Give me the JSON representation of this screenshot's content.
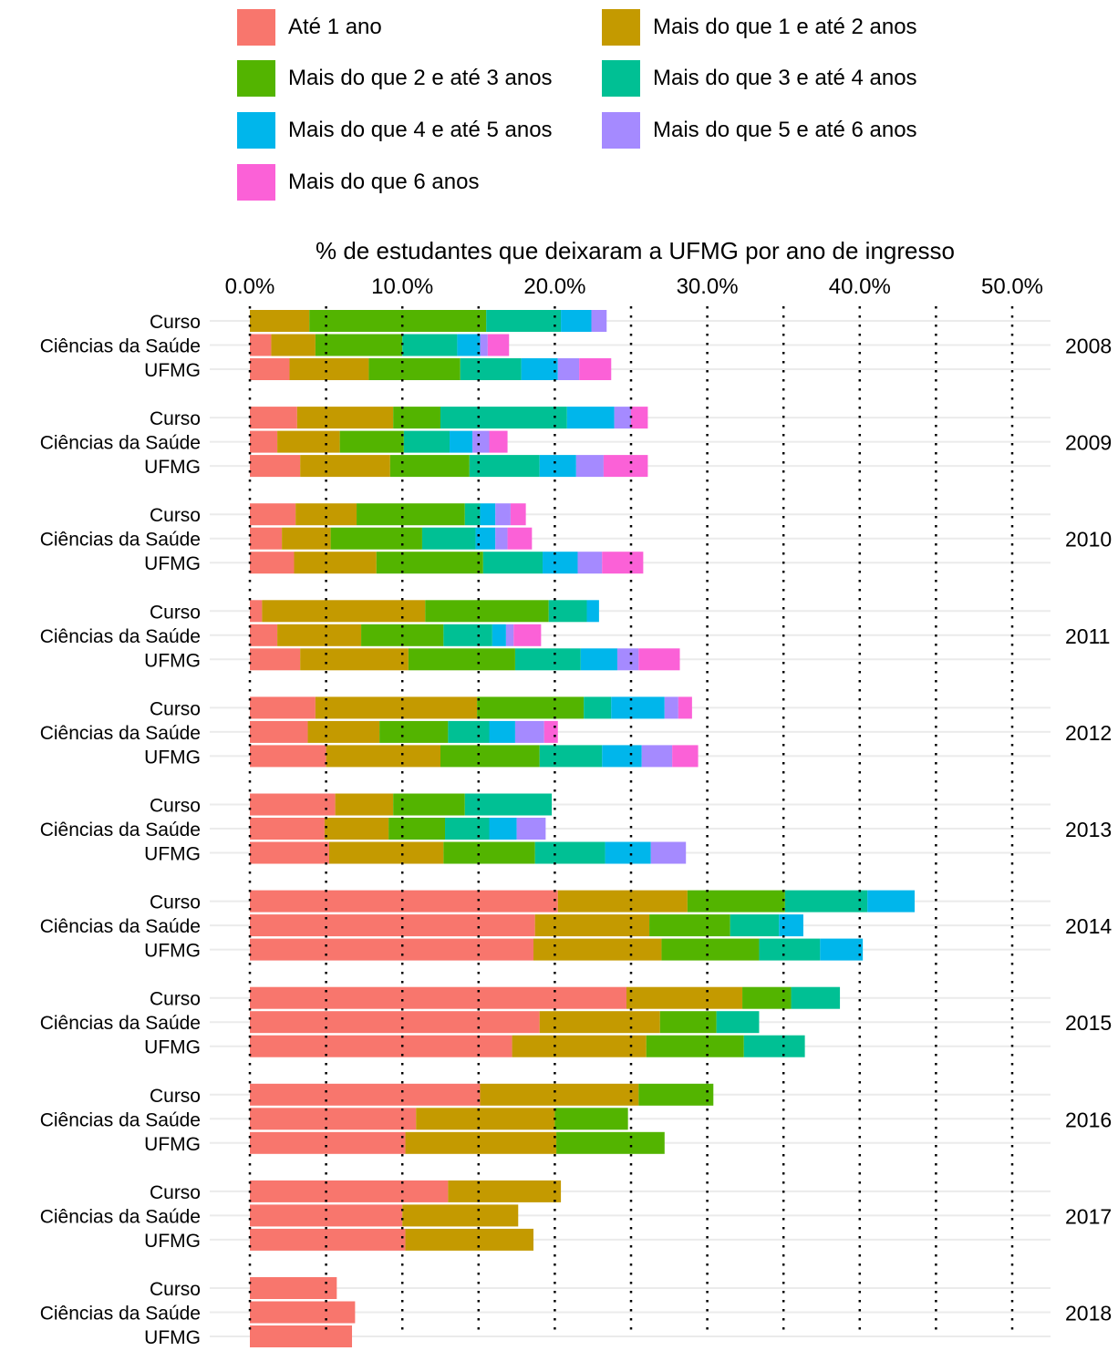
{
  "chart_data": {
    "type": "bar",
    "orientation": "horizontal",
    "stacked": true,
    "title": "% de estudantes que deixaram a UFMG por ano de ingresso",
    "x_axis_position": "top",
    "xlim": [
      0,
      52
    ],
    "xticks": [
      0,
      10,
      20,
      30,
      40,
      50
    ],
    "xtick_labels": [
      "0.0%",
      "10.0%",
      "20.0%",
      "30.0%",
      "40.0%",
      "50.0%"
    ],
    "grid": "dotted vertical every 5%",
    "legend_position": "top",
    "rows": [
      "Curso",
      "Ciências da Saúde",
      "UFMG"
    ],
    "segments": [
      {
        "name": "Até 1 ano",
        "color": "#F8766D"
      },
      {
        "name": "Mais do que 1 e até 2 anos",
        "color": "#C49A00"
      },
      {
        "name": "Mais do que 2 e até 3 anos",
        "color": "#53B400"
      },
      {
        "name": "Mais do que 3 e até 4 anos",
        "color": "#00C094"
      },
      {
        "name": "Mais do que 4 e até 5 anos",
        "color": "#00B6EB"
      },
      {
        "name": "Mais do que 5 e até 6 anos",
        "color": "#A58AFF"
      },
      {
        "name": "Mais do que 6 anos",
        "color": "#FB61D7"
      }
    ],
    "years": [
      {
        "year": "2008",
        "bars": [
          [
            0,
            3.9,
            11.6,
            4.9,
            2.0,
            1.0,
            0
          ],
          [
            1.4,
            2.9,
            5.7,
            3.6,
            1.5,
            0.5,
            1.4
          ],
          [
            2.6,
            5.2,
            6.0,
            4.0,
            2.4,
            1.4,
            2.1
          ]
        ]
      },
      {
        "year": "2009",
        "bars": [
          [
            3.1,
            6.3,
            3.1,
            8.3,
            3.1,
            1.1,
            1.1
          ],
          [
            1.8,
            4.1,
            4.2,
            3.0,
            1.5,
            1.1,
            1.2
          ],
          [
            3.3,
            5.9,
            5.2,
            4.6,
            2.4,
            1.8,
            2.9
          ]
        ]
      },
      {
        "year": "2010",
        "bars": [
          [
            3.0,
            4.0,
            7.1,
            1.0,
            1.0,
            1.0,
            1.0
          ],
          [
            2.1,
            3.2,
            6.0,
            3.5,
            1.3,
            0.8,
            1.6
          ],
          [
            2.9,
            5.4,
            7.0,
            3.9,
            2.3,
            1.6,
            2.7
          ]
        ]
      },
      {
        "year": "2011",
        "bars": [
          [
            0.8,
            10.7,
            8.1,
            2.5,
            0.8,
            0,
            0
          ],
          [
            1.8,
            5.5,
            5.4,
            3.2,
            0.9,
            0.5,
            1.8
          ],
          [
            3.3,
            7.1,
            7.0,
            4.3,
            2.4,
            1.4,
            2.7
          ]
        ]
      },
      {
        "year": "2012",
        "bars": [
          [
            4.3,
            10.6,
            7.0,
            1.8,
            3.5,
            0.9,
            0.9
          ],
          [
            3.8,
            4.7,
            4.5,
            2.7,
            1.7,
            1.9,
            0.9
          ],
          [
            5.0,
            7.5,
            6.5,
            4.1,
            2.6,
            2.0,
            1.7
          ]
        ]
      },
      {
        "year": "2013",
        "bars": [
          [
            5.6,
            3.8,
            4.7,
            5.7,
            0,
            0,
            0
          ],
          [
            4.9,
            4.2,
            3.7,
            2.9,
            1.8,
            1.9,
            0
          ],
          [
            5.2,
            7.5,
            6.0,
            4.6,
            3.0,
            2.3,
            0
          ]
        ]
      },
      {
        "year": "2014",
        "bars": [
          [
            20.2,
            8.5,
            6.4,
            5.4,
            3.1,
            0,
            0
          ],
          [
            18.7,
            7.5,
            5.3,
            3.2,
            1.6,
            0,
            0
          ],
          [
            18.6,
            8.4,
            6.4,
            4.0,
            2.8,
            0,
            0
          ]
        ]
      },
      {
        "year": "2015",
        "bars": [
          [
            24.7,
            7.6,
            3.2,
            3.2,
            0,
            0,
            0
          ],
          [
            19.0,
            7.9,
            3.7,
            2.8,
            0,
            0,
            0
          ],
          [
            17.2,
            8.8,
            6.4,
            4.0,
            0,
            0,
            0
          ]
        ]
      },
      {
        "year": "2016",
        "bars": [
          [
            15.1,
            10.4,
            4.9,
            0,
            0,
            0,
            0
          ],
          [
            10.9,
            9.1,
            4.8,
            0,
            0,
            0,
            0
          ],
          [
            10.2,
            9.9,
            7.1,
            0,
            0,
            0,
            0
          ]
        ]
      },
      {
        "year": "2017",
        "bars": [
          [
            13.0,
            7.4,
            0,
            0,
            0,
            0,
            0
          ],
          [
            10.0,
            7.6,
            0,
            0,
            0,
            0,
            0
          ],
          [
            10.2,
            8.4,
            0,
            0,
            0,
            0,
            0
          ]
        ]
      },
      {
        "year": "2018",
        "bars": [
          [
            5.7,
            0,
            0,
            0,
            0,
            0,
            0
          ],
          [
            6.9,
            0,
            0,
            0,
            0,
            0,
            0
          ],
          [
            6.7,
            0,
            0,
            0,
            0,
            0,
            0
          ]
        ]
      }
    ]
  }
}
